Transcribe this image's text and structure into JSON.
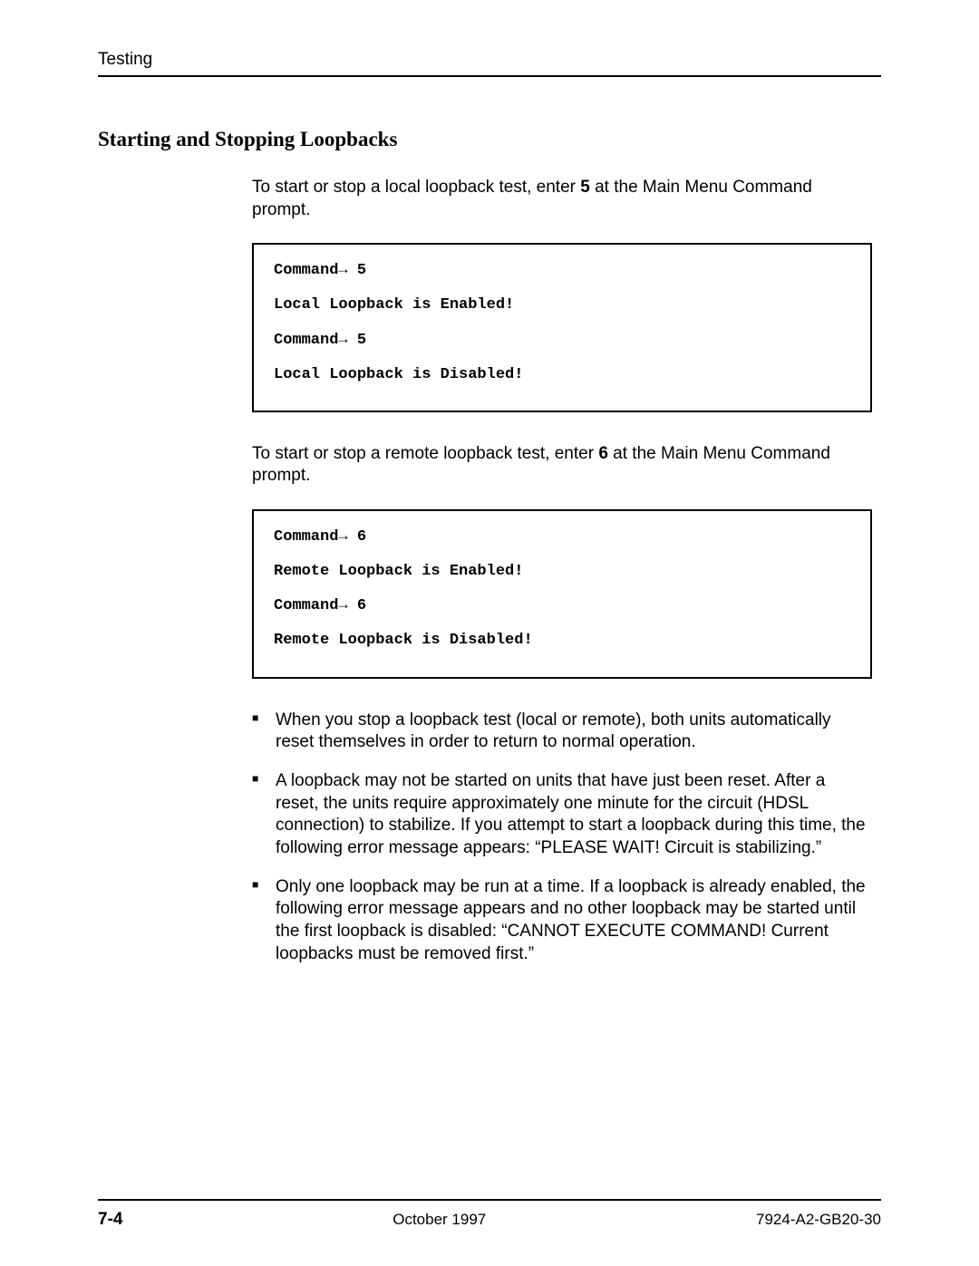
{
  "header": {
    "running": "Testing"
  },
  "section": {
    "title": "Starting and Stopping Loopbacks"
  },
  "para1": {
    "pre": "To start or stop a local loopback test, enter ",
    "bold": "5",
    "post": " at the Main Menu Command prompt."
  },
  "code1": {
    "l1": "Command→ 5",
    "l2": "Local Loopback is Enabled!",
    "l3": "Command→ 5",
    "l4": "Local Loopback is Disabled!"
  },
  "para2": {
    "pre": "To start or stop a remote loopback test, enter ",
    "bold": "6",
    "post": " at the Main Menu Command prompt."
  },
  "code2": {
    "l1": "Command→ 6",
    "l2": "Remote Loopback is Enabled!",
    "l3": "Command→ 6",
    "l4": "Remote Loopback is Disabled!"
  },
  "bullets": {
    "b1": "When you stop a loopback test (local or remote), both units automatically reset themselves in order to return to normal operation.",
    "b2": "A loopback may not be started on units that have just been reset. After a reset, the units require approximately one minute for the circuit (HDSL connection) to stabilize. If you attempt to start a loopback during this time, the following error message appears: “PLEASE WAIT! Circuit is stabilizing.”",
    "b3": "Only one loopback may be run at a time. If a loopback is already enabled, the following error message appears and no other loopback may be started until the first loopback is disabled: “CANNOT EXECUTE COMMAND! Current loopbacks must be removed first.”"
  },
  "footer": {
    "page": "7-4",
    "date": "October 1997",
    "doc": "7924-A2-GB20-30"
  }
}
